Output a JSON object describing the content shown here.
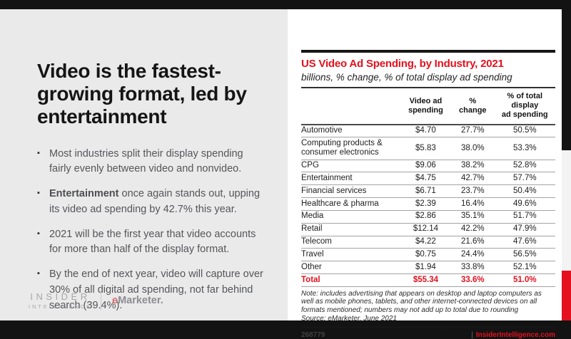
{
  "colors": {
    "accent_red": "#E4101E",
    "frame_black": "#131313",
    "left_card_gray": "#EAEAEA"
  },
  "icons": {
    "bullet_marker": "▪"
  },
  "left_panel": {
    "title": "Video is the fastest-growing format, led by entertainment",
    "bullets": [
      {
        "runs": [
          {
            "text": "Most industries split their display spending fairly evenly between video and nonvideo."
          }
        ]
      },
      {
        "runs": [
          {
            "text": "Entertainment",
            "bold": true
          },
          {
            "text": " once again stands out, upping its video ad spending by 42.7% this year."
          }
        ]
      },
      {
        "runs": [
          {
            "text": "2021 will be the first year that video accounts for more than half of the display format."
          }
        ]
      },
      {
        "runs": [
          {
            "text": "By the end of next year, video will capture over 30% of all digital ad spending, not far behind search (39.4%)."
          }
        ]
      }
    ],
    "logo": {
      "insider_line1": "INSIDER",
      "insider_line2": "INTELLIGENCE",
      "emarketer_e": "e",
      "emarketer_rest": "Marketer."
    }
  },
  "chart_panel": {
    "title": "US Video Ad Spending, by Industry, 2021",
    "subtitle": "billions, % change, % of total display ad spending",
    "note": "Note: includes advertising that appears on desktop and laptop computers as well as mobile phones, tablets, and other internet-connected devices on all formats mentioned; numbers may not add up to total due to rounding",
    "source": "Source: eMarketer, June 2021",
    "footer": {
      "chart_id": "268779",
      "brand": "eMarketer",
      "divider": "|",
      "site": "InsiderIntelligence.com"
    }
  },
  "chart_data": {
    "type": "table",
    "title": "US Video Ad Spending, by Industry, 2021",
    "subtitle": "billions, % change, % of total display ad spending",
    "columns": [
      "",
      "Video ad spending",
      "% change",
      "% of total display ad spending"
    ],
    "column_headers_display": [
      "",
      "Video ad\nspending",
      "%\nchange",
      "% of total display\nad spending"
    ],
    "rows": [
      [
        "Automotive",
        "$4.70",
        "27.7%",
        "50.5%"
      ],
      [
        "Computing products & consumer electronics",
        "$5.83",
        "38.0%",
        "53.3%"
      ],
      [
        "CPG",
        "$9.06",
        "38.2%",
        "52.8%"
      ],
      [
        "Entertainment",
        "$4.75",
        "42.7%",
        "57.7%"
      ],
      [
        "Financial services",
        "$6.71",
        "23.7%",
        "50.4%"
      ],
      [
        "Healthcare & pharma",
        "$2.39",
        "16.4%",
        "49.6%"
      ],
      [
        "Media",
        "$2.86",
        "35.1%",
        "51.7%"
      ],
      [
        "Retail",
        "$12.14",
        "42.2%",
        "47.9%"
      ],
      [
        "Telecom",
        "$4.22",
        "21.6%",
        "47.6%"
      ],
      [
        "Travel",
        "$0.75",
        "24.4%",
        "56.5%"
      ],
      [
        "Other",
        "$1.94",
        "33.8%",
        "52.1%"
      ]
    ],
    "total_row": [
      "Total",
      "$55.34",
      "33.6%",
      "51.0%"
    ]
  }
}
